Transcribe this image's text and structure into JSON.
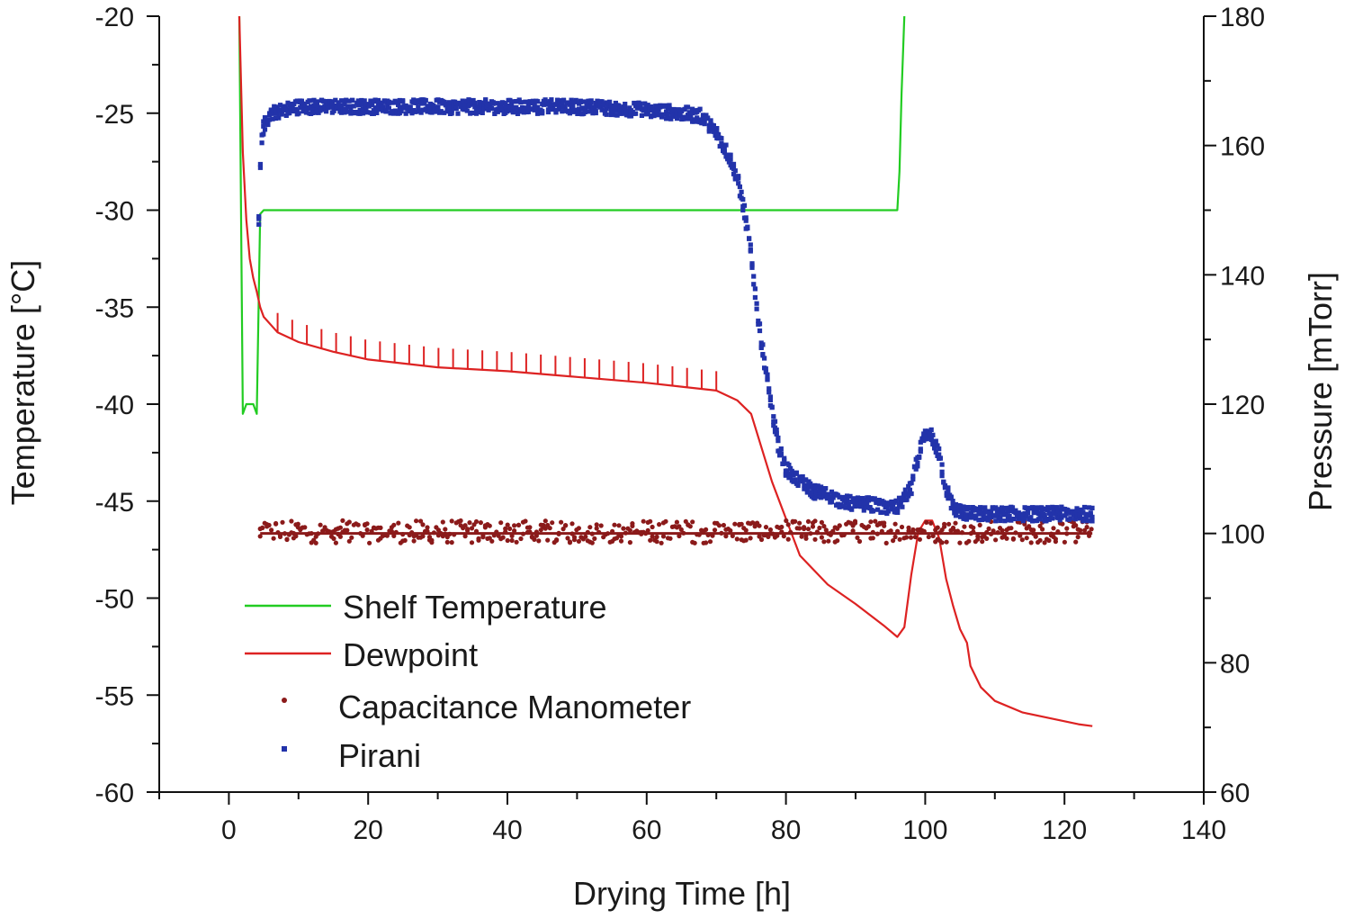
{
  "chart_data": {
    "type": "line",
    "xlabel": "Drying Time [h]",
    "ylabel_left": "Temperature [°C]",
    "ylabel_right": "Pressure [mTorr]",
    "xlim": [
      -10,
      140
    ],
    "ylim_left": [
      -60,
      -20
    ],
    "ylim_right": [
      60,
      180
    ],
    "x_ticks": [
      0,
      20,
      40,
      60,
      80,
      100,
      120,
      140
    ],
    "y_left_ticks": [
      -60,
      -55,
      -50,
      -45,
      -40,
      -35,
      -30,
      -25,
      -20
    ],
    "y_right_ticks": [
      60,
      80,
      100,
      120,
      140,
      160,
      180
    ],
    "grid": false,
    "legend_position": "bottom-left",
    "series": [
      {
        "name": "Shelf Temperature",
        "axis": "left",
        "kind": "line",
        "color": "#22cc22",
        "x": [
          1.5,
          2.0,
          2.5,
          3.5,
          4.0,
          4.5,
          5.0,
          20,
          40,
          60,
          80,
          96.0,
          96.3,
          96.6,
          97.0
        ],
        "y": [
          -20,
          -40.5,
          -40.0,
          -40.0,
          -40.5,
          -30.2,
          -30.0,
          -30.0,
          -30.0,
          -30.0,
          -30.0,
          -30.0,
          -28.0,
          -24.0,
          -20.0
        ]
      },
      {
        "name": "Dewpoint",
        "axis": "left",
        "kind": "line",
        "color": "#dd2222",
        "x": [
          1.5,
          2.0,
          2.5,
          3.0,
          3.5,
          4.0,
          4.5,
          5,
          7,
          10,
          15,
          20,
          30,
          40,
          50,
          60,
          65,
          70,
          73,
          75,
          78,
          82,
          86,
          90,
          94,
          96,
          97,
          98,
          99,
          100,
          101,
          102,
          103,
          104,
          105,
          106,
          106.5,
          108,
          110,
          114,
          118,
          122,
          124
        ],
        "y": [
          -20,
          -27,
          -30.5,
          -32.5,
          -33.5,
          -34.2,
          -35.0,
          -35.5,
          -36.3,
          -36.8,
          -37.3,
          -37.7,
          -38.1,
          -38.3,
          -38.6,
          -38.9,
          -39.1,
          -39.3,
          -39.8,
          -40.5,
          -44.0,
          -47.8,
          -49.3,
          -50.3,
          -51.4,
          -52.0,
          -51.5,
          -48.8,
          -46.6,
          -46.0,
          -46.0,
          -46.9,
          -49.0,
          -50.4,
          -51.6,
          -52.3,
          -53.5,
          -54.6,
          -55.3,
          -55.9,
          -56.2,
          -56.5,
          -56.6
        ]
      },
      {
        "name": "Capacitance Manometer",
        "axis": "right",
        "kind": "scatter",
        "color": "#8b1a1a",
        "x_range": [
          4.5,
          124
        ],
        "y_center": 100.0,
        "y_band": [
          98.5,
          102.0
        ]
      },
      {
        "name": "Pirani",
        "axis": "right",
        "kind": "scatter",
        "color": "#2233aa",
        "x": [
          4.3,
          4.6,
          5,
          6,
          8,
          10,
          20,
          30,
          40,
          50,
          60,
          65,
          68,
          70,
          72,
          73,
          74,
          75,
          76,
          77,
          78,
          79,
          80,
          82,
          84,
          86,
          88,
          90,
          92,
          94,
          96,
          98,
          99,
          100,
          101,
          102,
          103,
          104,
          106,
          110,
          115,
          120,
          124
        ],
        "y": [
          148,
          160,
          163,
          165,
          165.5,
          166,
          166,
          166,
          166,
          166,
          165.5,
          165,
          164.5,
          162,
          158,
          155,
          150,
          143,
          133,
          126,
          119,
          113,
          110,
          108,
          106.5,
          106,
          105,
          104.5,
          104.5,
          104,
          104,
          107,
          112,
          115,
          115,
          112,
          107,
          104,
          103,
          103,
          103,
          103,
          103
        ]
      }
    ]
  }
}
